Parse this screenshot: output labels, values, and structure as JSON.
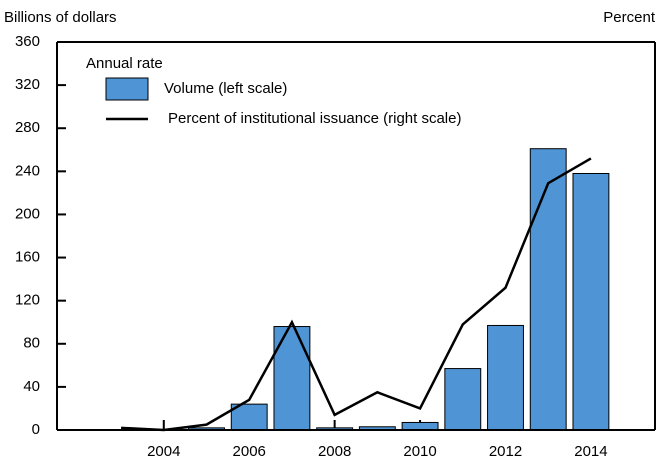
{
  "chart_data": {
    "type": "bar_line",
    "y_label": "Billions of dollars",
    "y2_label": "Percent",
    "legend_title": "Annual rate",
    "x": [
      2003,
      2004,
      2005,
      2006,
      2007,
      2008,
      2009,
      2010,
      2011,
      2012,
      2013,
      2014
    ],
    "series": [
      {
        "name": "Volume (left scale)",
        "color": "#4f94d4",
        "type": "bar",
        "values": [
          null,
          null,
          2,
          24,
          96,
          2,
          3,
          7,
          57,
          97,
          261,
          238
        ]
      },
      {
        "name": "Percent of institutional issuance (right scale)",
        "color": "#000000",
        "type": "line",
        "axis": "y2",
        "values": [
          0.5,
          0,
          1.25,
          7,
          25,
          3.5,
          8.75,
          5,
          24.5,
          33,
          57.25,
          63
        ]
      }
    ],
    "xlim": [
      2001.5,
      2015.5
    ],
    "xticks": [
      2004,
      2006,
      2008,
      2010,
      2012,
      2014
    ],
    "ylim": [
      0,
      360
    ],
    "yticks": [
      0,
      40,
      80,
      120,
      160,
      200,
      240,
      280,
      320,
      360
    ],
    "y2lim": [
      0,
      90
    ]
  }
}
